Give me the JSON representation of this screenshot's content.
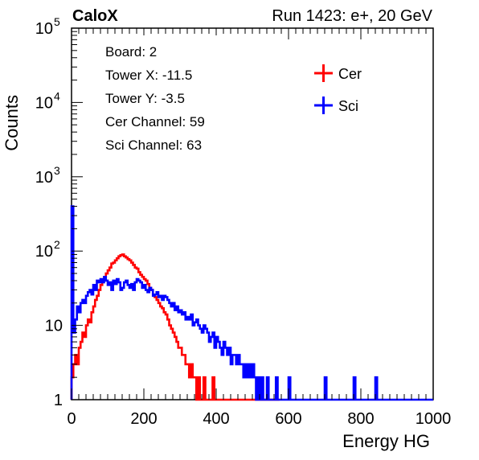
{
  "header": {
    "left_label": "CaloX",
    "right_label": "Run 1423: e+, 20 GeV"
  },
  "info_box": {
    "lines": [
      "Board: 2",
      "Tower X: -11.5",
      "Tower Y: -3.5",
      "Cer Channel: 59",
      "Sci Channel: 63"
    ]
  },
  "chart_data": {
    "type": "line",
    "title": "",
    "xlabel": "Energy HG",
    "ylabel": "Counts",
    "xlim": [
      0,
      1000
    ],
    "ylim": [
      1,
      100000
    ],
    "y_scale": "log",
    "grid": false,
    "legend_position": "top-right",
    "x_ticks": [
      "0",
      "200",
      "400",
      "600",
      "800",
      "1000"
    ],
    "y_ticks": [
      {
        "value": 1,
        "label": "1"
      },
      {
        "value": 10,
        "label": "10"
      },
      {
        "value": 100,
        "label": "10",
        "exp": "2"
      },
      {
        "value": 1000,
        "label": "10",
        "exp": "3"
      },
      {
        "value": 10000,
        "label": "10",
        "exp": "4"
      },
      {
        "value": 100000,
        "label": "10",
        "exp": "5"
      }
    ],
    "series": [
      {
        "name": "Cer",
        "color": "#ff0000",
        "x": [
          0,
          5,
          10,
          15,
          20,
          25,
          30,
          35,
          40,
          45,
          50,
          55,
          60,
          65,
          70,
          75,
          80,
          85,
          90,
          95,
          100,
          105,
          110,
          115,
          120,
          125,
          130,
          135,
          140,
          145,
          150,
          155,
          160,
          165,
          170,
          175,
          180,
          185,
          190,
          195,
          200,
          205,
          210,
          215,
          220,
          225,
          230,
          235,
          240,
          245,
          250,
          255,
          260,
          265,
          270,
          275,
          280,
          285,
          290,
          295,
          300,
          305,
          310,
          315,
          320,
          325,
          330,
          335,
          340,
          345,
          350,
          355,
          360,
          365,
          370,
          375,
          380,
          385,
          390,
          395,
          400,
          405,
          410,
          415,
          420,
          425,
          430,
          435,
          440,
          445,
          450,
          455,
          460,
          465,
          470,
          475,
          480,
          485,
          490,
          495,
          500,
          505,
          510,
          515,
          520,
          525,
          530,
          535,
          540,
          545,
          550,
          555,
          560,
          565,
          570
        ],
        "y": [
          2,
          3,
          4,
          3,
          5,
          6,
          8,
          7,
          10,
          12,
          11,
          15,
          18,
          22,
          25,
          30,
          35,
          40,
          45,
          50,
          55,
          60,
          68,
          70,
          75,
          80,
          85,
          88,
          90,
          85,
          82,
          78,
          75,
          70,
          65,
          60,
          58,
          52,
          48,
          45,
          42,
          40,
          36,
          32,
          30,
          26,
          24,
          22,
          20,
          18,
          17,
          15,
          14,
          12,
          10,
          9,
          8,
          7,
          6,
          5,
          5,
          4,
          4,
          3,
          3,
          2,
          3,
          2,
          2,
          1,
          2,
          1,
          1,
          2,
          1,
          1,
          1,
          1,
          2,
          1,
          1,
          1,
          1,
          1,
          1,
          1,
          1,
          1,
          1,
          1,
          1,
          1,
          1,
          1,
          1,
          1,
          1,
          1,
          1,
          1,
          1,
          1,
          1,
          1,
          1,
          1,
          1,
          1,
          1,
          1,
          1,
          1,
          1,
          1,
          1
        ]
      },
      {
        "name": "Sci",
        "color": "#0000ff",
        "x": [
          0,
          5,
          10,
          15,
          20,
          25,
          30,
          35,
          40,
          45,
          50,
          55,
          60,
          65,
          70,
          75,
          80,
          85,
          90,
          95,
          100,
          105,
          110,
          115,
          120,
          125,
          130,
          135,
          140,
          145,
          150,
          155,
          160,
          165,
          170,
          175,
          180,
          185,
          190,
          195,
          200,
          205,
          210,
          215,
          220,
          225,
          230,
          235,
          240,
          245,
          250,
          255,
          260,
          265,
          270,
          275,
          280,
          285,
          290,
          295,
          300,
          305,
          310,
          315,
          320,
          325,
          330,
          335,
          340,
          345,
          350,
          355,
          360,
          365,
          370,
          375,
          380,
          385,
          390,
          395,
          400,
          405,
          410,
          415,
          420,
          425,
          430,
          435,
          440,
          445,
          450,
          455,
          460,
          465,
          470,
          475,
          480,
          485,
          490,
          495,
          500,
          505,
          510,
          515,
          520,
          525,
          530,
          535,
          540,
          545,
          550,
          555,
          560,
          565,
          570,
          575,
          580,
          585,
          590,
          595,
          600,
          605,
          610,
          615,
          620,
          625,
          630,
          635,
          640,
          645,
          650,
          655,
          660,
          665,
          670,
          675,
          680,
          685,
          690,
          695,
          700,
          705,
          710,
          715,
          720,
          725,
          730,
          735,
          740,
          745,
          750,
          755,
          760,
          765,
          770,
          775,
          780,
          785,
          790,
          795,
          800,
          805,
          810,
          815,
          820,
          825,
          830,
          835,
          840,
          845,
          850,
          855,
          860,
          865,
          870,
          875,
          880,
          885,
          890,
          895,
          900,
          905,
          910,
          915,
          920,
          925,
          930,
          935,
          940,
          945,
          950,
          955,
          960,
          965,
          970,
          975,
          980,
          985,
          990,
          995
        ],
        "y": [
          400,
          8,
          12,
          18,
          15,
          20,
          22,
          20,
          25,
          28,
          30,
          26,
          35,
          30,
          40,
          38,
          42,
          38,
          45,
          40,
          35,
          38,
          30,
          40,
          36,
          42,
          38,
          30,
          32,
          38,
          40,
          35,
          32,
          36,
          30,
          38,
          42,
          40,
          38,
          32,
          35,
          30,
          28,
          32,
          30,
          25,
          26,
          28,
          24,
          25,
          22,
          25,
          24,
          22,
          20,
          18,
          20,
          16,
          18,
          15,
          16,
          14,
          15,
          12,
          13,
          12,
          14,
          10,
          11,
          12,
          10,
          9,
          8,
          10,
          9,
          8,
          6,
          7,
          8,
          5,
          7,
          6,
          5,
          4,
          6,
          5,
          4,
          5,
          3,
          4,
          4,
          3,
          4,
          3,
          3,
          2,
          3,
          2,
          3,
          2,
          3,
          2,
          1,
          2,
          1,
          2,
          1,
          1,
          2,
          1,
          1,
          1,
          1,
          2,
          1,
          1,
          1,
          1,
          1,
          1,
          2,
          1,
          1,
          1,
          1,
          1,
          1,
          1,
          1,
          1,
          1,
          1,
          1,
          1,
          1,
          1,
          1,
          1,
          1,
          1,
          2,
          1,
          1,
          1,
          1,
          1,
          1,
          1,
          1,
          1,
          1,
          1,
          1,
          1,
          1,
          1,
          2,
          1,
          1,
          1,
          1,
          1,
          1,
          1,
          1,
          1,
          1,
          1,
          2,
          1,
          1,
          1,
          1,
          1,
          1,
          1,
          1,
          1,
          1,
          1,
          1,
          1,
          1,
          1,
          1,
          1,
          1,
          1,
          1,
          1,
          1,
          1,
          1,
          1,
          1,
          1,
          1,
          1,
          1,
          1
        ]
      }
    ]
  }
}
